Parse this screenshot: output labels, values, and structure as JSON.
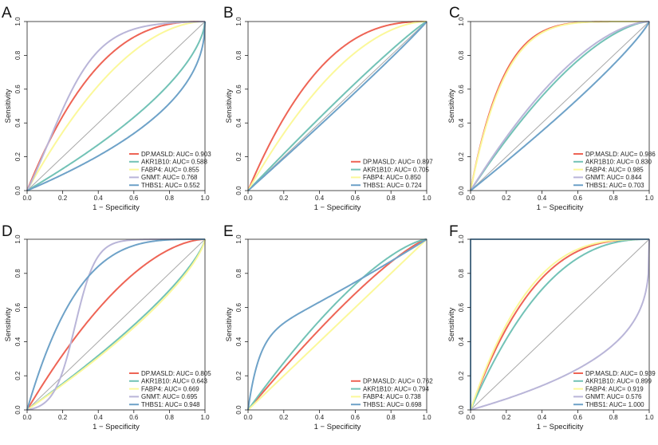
{
  "figure": {
    "xlabel": "1 − Specificity",
    "ylabel": "Sensitivity",
    "ticks": [
      "0.0",
      "0.2",
      "0.4",
      "0.6",
      "0.8",
      "1.0"
    ],
    "auc_prefix": "AUC="
  },
  "colors": {
    "DP.MASLD": "#EE6455",
    "AKR1B10": "#72C2B6",
    "FABP4": "#FBF89A",
    "GNMT": "#B9B5D8",
    "THBS1": "#6EA2C8",
    "diagonal": "#A8A8A8"
  },
  "chart_data": [
    {
      "panel": "A",
      "type": "line",
      "xlabel": "1 − Specificity",
      "ylabel": "Sensitivity",
      "xlim": [
        0,
        1
      ],
      "ylim": [
        0,
        1
      ],
      "series": [
        {
          "name": "DP.MASLD",
          "auc": "0.903",
          "shape": 2.6
        },
        {
          "name": "AKR1B10",
          "auc": "0.588",
          "shape": 0.62
        },
        {
          "name": "FABP4",
          "auc": "0.855",
          "shape": 1.9
        },
        {
          "name": "GNMT",
          "auc": "0.768",
          "shape": "s1"
        },
        {
          "name": "THBS1",
          "auc": "0.552",
          "shape": 0.45
        }
      ]
    },
    {
      "panel": "B",
      "type": "line",
      "xlabel": "1 − Specificity",
      "ylabel": "Sensitivity",
      "xlim": [
        0,
        1
      ],
      "ylim": [
        0,
        1
      ],
      "series": [
        {
          "name": "DP.MASLD",
          "auc": "0.897",
          "shape": 2.5
        },
        {
          "name": "AKR1B10",
          "auc": "0.705",
          "shape": 1.1
        },
        {
          "name": "FABP4",
          "auc": "0.850",
          "shape": 1.85
        },
        {
          "name": "THBS1",
          "auc": "0.724",
          "shape": 0.95
        }
      ]
    },
    {
      "panel": "C",
      "type": "line",
      "xlabel": "1 − Specificity",
      "ylabel": "Sensitivity",
      "xlim": [
        0,
        1
      ],
      "ylim": [
        0,
        1
      ],
      "series": [
        {
          "name": "DP.MASLD",
          "auc": "0.986",
          "shape": 5.5
        },
        {
          "name": "AKR1B10",
          "auc": "0.830",
          "shape": 1.6
        },
        {
          "name": "FABP4",
          "auc": "0.985",
          "shape": 5.3
        },
        {
          "name": "GNMT",
          "auc": "0.844",
          "shape": 1.7
        },
        {
          "name": "THBS1",
          "auc": "0.703",
          "shape": 0.85
        }
      ]
    },
    {
      "panel": "D",
      "type": "line",
      "xlabel": "1 − Specificity",
      "ylabel": "Sensitivity",
      "xlim": [
        0,
        1
      ],
      "ylim": [
        0,
        1
      ],
      "series": [
        {
          "name": "DP.MASLD",
          "auc": "0.805",
          "shape": 1.75
        },
        {
          "name": "AKR1B10",
          "auc": "0.643",
          "shape": 0.75
        },
        {
          "name": "FABP4",
          "auc": "0.669",
          "shape": 0.72
        },
        {
          "name": "GNMT",
          "auc": "0.695",
          "shape": "s2"
        },
        {
          "name": "THBS1",
          "auc": "0.948",
          "shape": 3.6
        }
      ]
    },
    {
      "panel": "E",
      "type": "line",
      "xlabel": "1 − Specificity",
      "ylabel": "Sensitivity",
      "xlim": [
        0,
        1
      ],
      "ylim": [
        0,
        1
      ],
      "series": [
        {
          "name": "DP.MASLD",
          "auc": "0.762",
          "shape": 1.25
        },
        {
          "name": "AKR1B10",
          "auc": "0.794",
          "shape": 1.45
        },
        {
          "name": "FABP4",
          "auc": "0.738",
          "shape": 1.0
        },
        {
          "name": "THBS1",
          "auc": "0.698",
          "shape": "e"
        }
      ]
    },
    {
      "panel": "F",
      "type": "line",
      "xlabel": "1 − Specificity",
      "ylabel": "Sensitivity",
      "xlim": [
        0,
        1
      ],
      "ylim": [
        0,
        1
      ],
      "series": [
        {
          "name": "DP.MASLD",
          "auc": "0.939",
          "shape": 2.9
        },
        {
          "name": "AKR1B10",
          "auc": "0.899",
          "shape": 2.4
        },
        {
          "name": "FABP4",
          "auc": "0.919",
          "shape": 3.1
        },
        {
          "name": "GNMT",
          "auc": "0.576",
          "shape": 0.3
        },
        {
          "name": "THBS1",
          "auc": "1.000",
          "shape": "step"
        }
      ]
    }
  ]
}
